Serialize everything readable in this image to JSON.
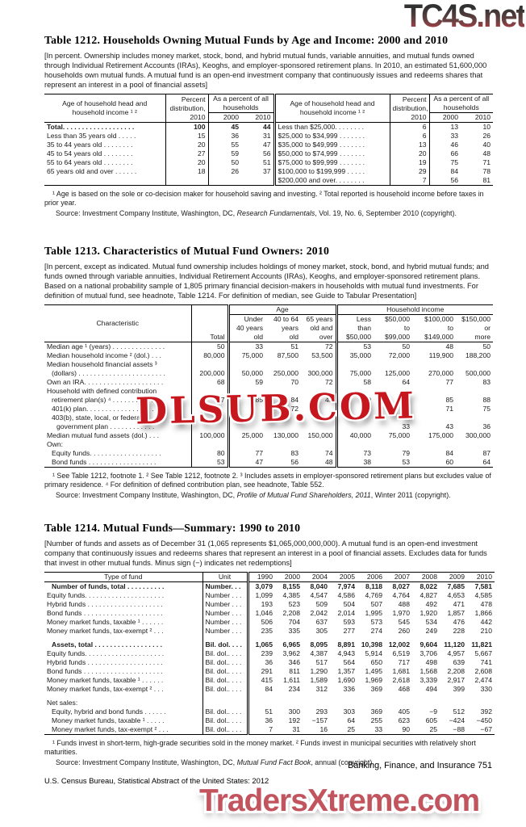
{
  "watermarks": {
    "top": "TC4S.net",
    "middle": "DLSUB.COM",
    "bottom": "TradersXtreme.com"
  },
  "footer": {
    "chapter": "Banking, Finance, and Insurance  751",
    "bureau_line": "U.S. Census Bureau, Statistical Abstract of the United States: 2012"
  },
  "table1212": {
    "title": "Table 1212. Households Owning Mutual Funds by Age and Income: 2000 and 2010",
    "headnote": "[In percent. Ownership includes money market, stock, bond, and hybrid mutual funds, variable annuities, and mutual funds owned through Individual Retirement Accounts (IRAs), Keoghs, and employer-sponsored retirement plans. In 2010, an estimated 51,600,000 households own mutual funds. A mutual fund is an open-end investment company that continuously issues and redeems shares that represent an interest in a pool of financial assets]",
    "header": {
      "stub": "Age of household head and\nhousehold income ¹ ²",
      "percent_dist": "Percent\ndistribution,\n2010",
      "group": "As a percent of all\nhouseholds",
      "years": [
        "2000",
        "2010"
      ]
    },
    "rows": [
      {
        "left": {
          "label": "Total. . . . . . . . . . . . . . . . . . .",
          "bold": true,
          "values": [
            "100",
            "45",
            "44"
          ]
        },
        "right": {
          "label": "Less than $25,000. . . . . . . .",
          "values": [
            "6",
            "13",
            "10"
          ]
        }
      },
      {
        "left": {
          "label": "Less than 35 years old  . . . . .",
          "values": [
            "15",
            "36",
            "31"
          ]
        },
        "right": {
          "label": "$25,000 to $34,999  . . . . . . .",
          "values": [
            "6",
            "33",
            "26"
          ]
        }
      },
      {
        "left": {
          "label": "35 to 44 years old  . . . . . . . .",
          "values": [
            "20",
            "55",
            "47"
          ]
        },
        "right": {
          "label": "$35,000 to $49,999  . . . . . . .",
          "values": [
            "13",
            "46",
            "40"
          ]
        }
      },
      {
        "left": {
          "label": "45 to 54 years old  . . . . . . . .",
          "values": [
            "27",
            "59",
            "56"
          ]
        },
        "right": {
          "label": "$50,000 to $74,999  . . . . . . .",
          "values": [
            "20",
            "66",
            "48"
          ]
        }
      },
      {
        "left": {
          "label": "55 to 64 years old  . . . . . . . .",
          "values": [
            "20",
            "50",
            "51"
          ]
        },
        "right": {
          "label": "$75,000 to $99,999  . . . . . . .",
          "values": [
            "19",
            "75",
            "71"
          ]
        }
      },
      {
        "left": {
          "label": "65 years old and over  . . . . . .",
          "values": [
            "18",
            "26",
            "37"
          ]
        },
        "right": {
          "label": "$100,000 to $199,999  . . . . .",
          "values": [
            "29",
            "84",
            "78"
          ]
        }
      },
      {
        "left": {
          "label": "",
          "values": [
            "",
            "",
            ""
          ]
        },
        "right": {
          "label": "$200,000 and over. . . . . . . .",
          "values": [
            "7",
            "56",
            "81"
          ]
        }
      }
    ],
    "footnote": "¹ Age is based on the sole or co-decision maker for household saving and investing. ² Total reported is household income before taxes in prior year.",
    "source_pre": "Source: Investment Company Institute, Washington, DC, ",
    "source_italic": "Research Fundamentals",
    "source_post": ", Vol. 19, No. 6, September 2010 (copyright)."
  },
  "table1213": {
    "title": "Table 1213. Characteristics of Mutual Fund Owners: 2010",
    "headnote": "[In percent, except as indicated. Mutual fund ownership includes holdings of money market, stock, bond, and hybrid mutual funds; and funds owned through variable annuities, Individual Retirement Accounts (IRAs), Keoghs, and employer-sponsored retirement plans. Based on a national probability sample of 1,805 primary financial decision-makers in households with mutual fund investments. For definition of mutual fund, see headnote, Table 1214. For definition of median, see Guide to Tabular Presentation]",
    "header": {
      "stub": "Characteristic",
      "total": "Total",
      "group_age": "Age",
      "group_income": "Household income",
      "cols": [
        "Under\n40 years\nold",
        "40 to 64\nyears\nold",
        "65 years\nold and\nover",
        "Less\nthan\n$50,000",
        "$50,000\nto\n$99,000",
        "$100,000\nto\n$149,000",
        "$150,000\nor\nmore"
      ]
    },
    "rows": [
      {
        "label": "Median age ¹ (years) . . . . . . . . . . . . . .",
        "indent": 0,
        "values": [
          "50",
          "33",
          "51",
          "72",
          "53",
          "50",
          "48",
          "50"
        ]
      },
      {
        "label": "Median household income ² (dol.) . . .",
        "indent": 0,
        "values": [
          "80,000",
          "75,000",
          "87,500",
          "53,500",
          "35,000",
          "72,000",
          "119,900",
          "188,200"
        ]
      },
      {
        "label": "Median household financial assets ³",
        "indent": 0,
        "values": []
      },
      {
        "label": "(dollars) . . . . . . . . . . . . . . . . . . . . . . .",
        "indent": 1,
        "values": [
          "200,000",
          "50,000",
          "250,000",
          "300,000",
          "75,000",
          "125,000",
          "270,000",
          "500,000"
        ]
      },
      {
        "label": "Own an IRA. . . . . . . . . . . . . . . . . . . . .",
        "indent": 0,
        "values": [
          "68",
          "59",
          "70",
          "72",
          "58",
          "64",
          "77",
          "83"
        ]
      },
      {
        "label": "Household with defined contribution",
        "indent": 0,
        "values": []
      },
      {
        "label": "retirement plan(s) ⁴  . . . . . . . . . . . .",
        "indent": 1,
        "values": [
          "77",
          "85",
          "84",
          "45",
          "60",
          "79",
          "85",
          "88"
        ]
      },
      {
        "label": "401(k) plan. . . . . . . . . . . . . . . . . . .",
        "indent": 1,
        "values": [
          "",
          "",
          "72",
          "",
          "",
          "66",
          "71",
          "75"
        ]
      },
      {
        "label": "403(b), state, local, or federal",
        "indent": 1,
        "values": []
      },
      {
        "label": "government plan  . . . . . . . . . . . .",
        "indent": 2,
        "values": [
          "",
          "",
          "",
          "",
          "",
          "33",
          "43",
          "36"
        ]
      },
      {
        "label": "Median mutual fund assets (dol.) . . .",
        "indent": 0,
        "values": [
          "100,000",
          "25,000",
          "130,000",
          "150,000",
          "40,000",
          "75,000",
          "175,000",
          "300,000"
        ]
      },
      {
        "label": "Own:",
        "indent": 0,
        "values": []
      },
      {
        "label": "Equity funds. . . . . . . . . . . . . . . . . . .",
        "indent": 1,
        "values": [
          "80",
          "77",
          "83",
          "74",
          "73",
          "79",
          "84",
          "87"
        ]
      },
      {
        "label": "Bond funds  . . . . . . . . . . . . . . . . . .",
        "indent": 1,
        "values": [
          "53",
          "47",
          "56",
          "48",
          "38",
          "53",
          "60",
          "64"
        ]
      }
    ],
    "footnote": "¹ See Table 1212, footnote 1. ² See Table 1212, footnote 2. ³ Includes assets in employer-sponsored retirement plans but excludes value of primary residence. ⁴ For definition of defined contribution plan, see headnote, Table 552.",
    "source_pre": "Source: Investment Company Institute, Washington, DC, ",
    "source_italic": "Profile of Mutual Fund Shareholders, 2011",
    "source_post": ", Winter 2011 (copyright)."
  },
  "table1214": {
    "title": "Table 1214. Mutual Funds—Summary: 1990 to 2010",
    "headnote": "[Number of funds and assets as of December 31 (1,065 represents $1,065,000,000,000). A mutual fund is an open-end investment company that continuously issues and redeems shares that represent an interest in a pool of financial assets. Excludes data for funds that invest in other mutual funds. Minus sign (−) indicates net redemptions]",
    "header": {
      "stub": "Type of fund",
      "unit": "Unit",
      "years": [
        "1990",
        "2000",
        "2004",
        "2005",
        "2006",
        "2007",
        "2008",
        "2009",
        "2010"
      ]
    },
    "rows": [
      {
        "label": "Number of funds, total  . . . . . . . . . .",
        "unit": "Number. . .",
        "bold": true,
        "indent": 1,
        "values": [
          "3,079",
          "8,155",
          "8,040",
          "7,974",
          "8,118",
          "8,027",
          "8,022",
          "7,685",
          "7,581"
        ]
      },
      {
        "label": "Equity funds. . . . . . . . . . . . . . . . . . . . .",
        "unit": "Number . . .",
        "values": [
          "1,099",
          "4,385",
          "4,547",
          "4,586",
          "4,769",
          "4,764",
          "4,827",
          "4,653",
          "4,585"
        ]
      },
      {
        "label": "Hybrid funds  . . . . . . . . . . . . . . . . . . . .",
        "unit": "Number . . .",
        "values": [
          "193",
          "523",
          "509",
          "504",
          "507",
          "488",
          "492",
          "471",
          "478"
        ]
      },
      {
        "label": "Bond funds  . . . . . . . . . . . . . . . . . . . . .",
        "unit": "Number . . .",
        "values": [
          "1,046",
          "2,208",
          "2,042",
          "2,014",
          "1,995",
          "1,970",
          "1,920",
          "1,857",
          "1,866"
        ]
      },
      {
        "label": "Money market funds, taxable ¹  . . . . . .",
        "unit": "Number . . .",
        "values": [
          "506",
          "704",
          "637",
          "593",
          "573",
          "545",
          "534",
          "476",
          "442"
        ]
      },
      {
        "label": "Money market funds, tax-exempt ² . . .",
        "unit": "Number . . .",
        "values": [
          "235",
          "335",
          "305",
          "277",
          "274",
          "260",
          "249",
          "228",
          "210"
        ]
      },
      {
        "label": "Assets, total . . . . . . . . . . . . . . . . . .",
        "unit": "Bil. dol. . . .",
        "bold": true,
        "indent": 1,
        "gap": true,
        "values": [
          "1,065",
          "6,965",
          "8,095",
          "8,891",
          "10,398",
          "12,002",
          "9,604",
          "11,120",
          "11,821"
        ]
      },
      {
        "label": "Equity funds. . . . . . . . . . . . . . . . . . . . .",
        "unit": "Bil. dol.. . . .",
        "values": [
          "239",
          "3,962",
          "4,387",
          "4,943",
          "5,914",
          "6,519",
          "3,706",
          "4,957",
          "5,667"
        ]
      },
      {
        "label": "Hybrid funds  . . . . . . . . . . . . . . . . . . . .",
        "unit": "Bil. dol.. . . .",
        "values": [
          "36",
          "346",
          "517",
          "564",
          "650",
          "717",
          "498",
          "639",
          "741"
        ]
      },
      {
        "label": "Bond funds  . . . . . . . . . . . . . . . . . . . . .",
        "unit": "Bil. dol.. . . .",
        "values": [
          "291",
          "811",
          "1,290",
          "1,357",
          "1,495",
          "1,681",
          "1,568",
          "2,208",
          "2,608"
        ]
      },
      {
        "label": "Money market funds, taxable ¹  . . . . . .",
        "unit": "Bil. dol.. . . .",
        "values": [
          "415",
          "1,611",
          "1,589",
          "1,690",
          "1,969",
          "2,618",
          "3,339",
          "2,917",
          "2,474"
        ]
      },
      {
        "label": "Money market funds, tax-exempt ² . . .",
        "unit": "Bil. dol.. . . .",
        "values": [
          "84",
          "234",
          "312",
          "336",
          "369",
          "468",
          "494",
          "399",
          "330"
        ]
      },
      {
        "label": "Net sales:",
        "unit": "",
        "gap": true,
        "values": []
      },
      {
        "label": "Equity, hybrid and bond funds . . . . . .",
        "unit": "Bil. dol.. . . .",
        "indent": 1,
        "values": [
          "51",
          "300",
          "293",
          "303",
          "369",
          "405",
          "−9",
          "512",
          "392"
        ]
      },
      {
        "label": "Money market funds, taxable ¹  . . . . .",
        "unit": "Bil. dol.. . . .",
        "indent": 1,
        "values": [
          "36",
          "192",
          "−157",
          "64",
          "255",
          "623",
          "605",
          "−424",
          "−450"
        ]
      },
      {
        "label": "Money market funds, tax-exempt ² . . .",
        "unit": "Bil. dol.. . . .",
        "indent": 1,
        "values": [
          "7",
          "31",
          "16",
          "25",
          "33",
          "90",
          "25",
          "−88",
          "−67"
        ]
      }
    ],
    "footnote": "¹ Funds invest in short-term, high-grade securities sold in the money market. ² Funds invest in municipal securities with relatively short maturities.",
    "source_pre": "Source: Investment Company Institute, Washington, DC, ",
    "source_italic": "Mutual Fund Fact Book",
    "source_post": ", annual (copyright)."
  }
}
